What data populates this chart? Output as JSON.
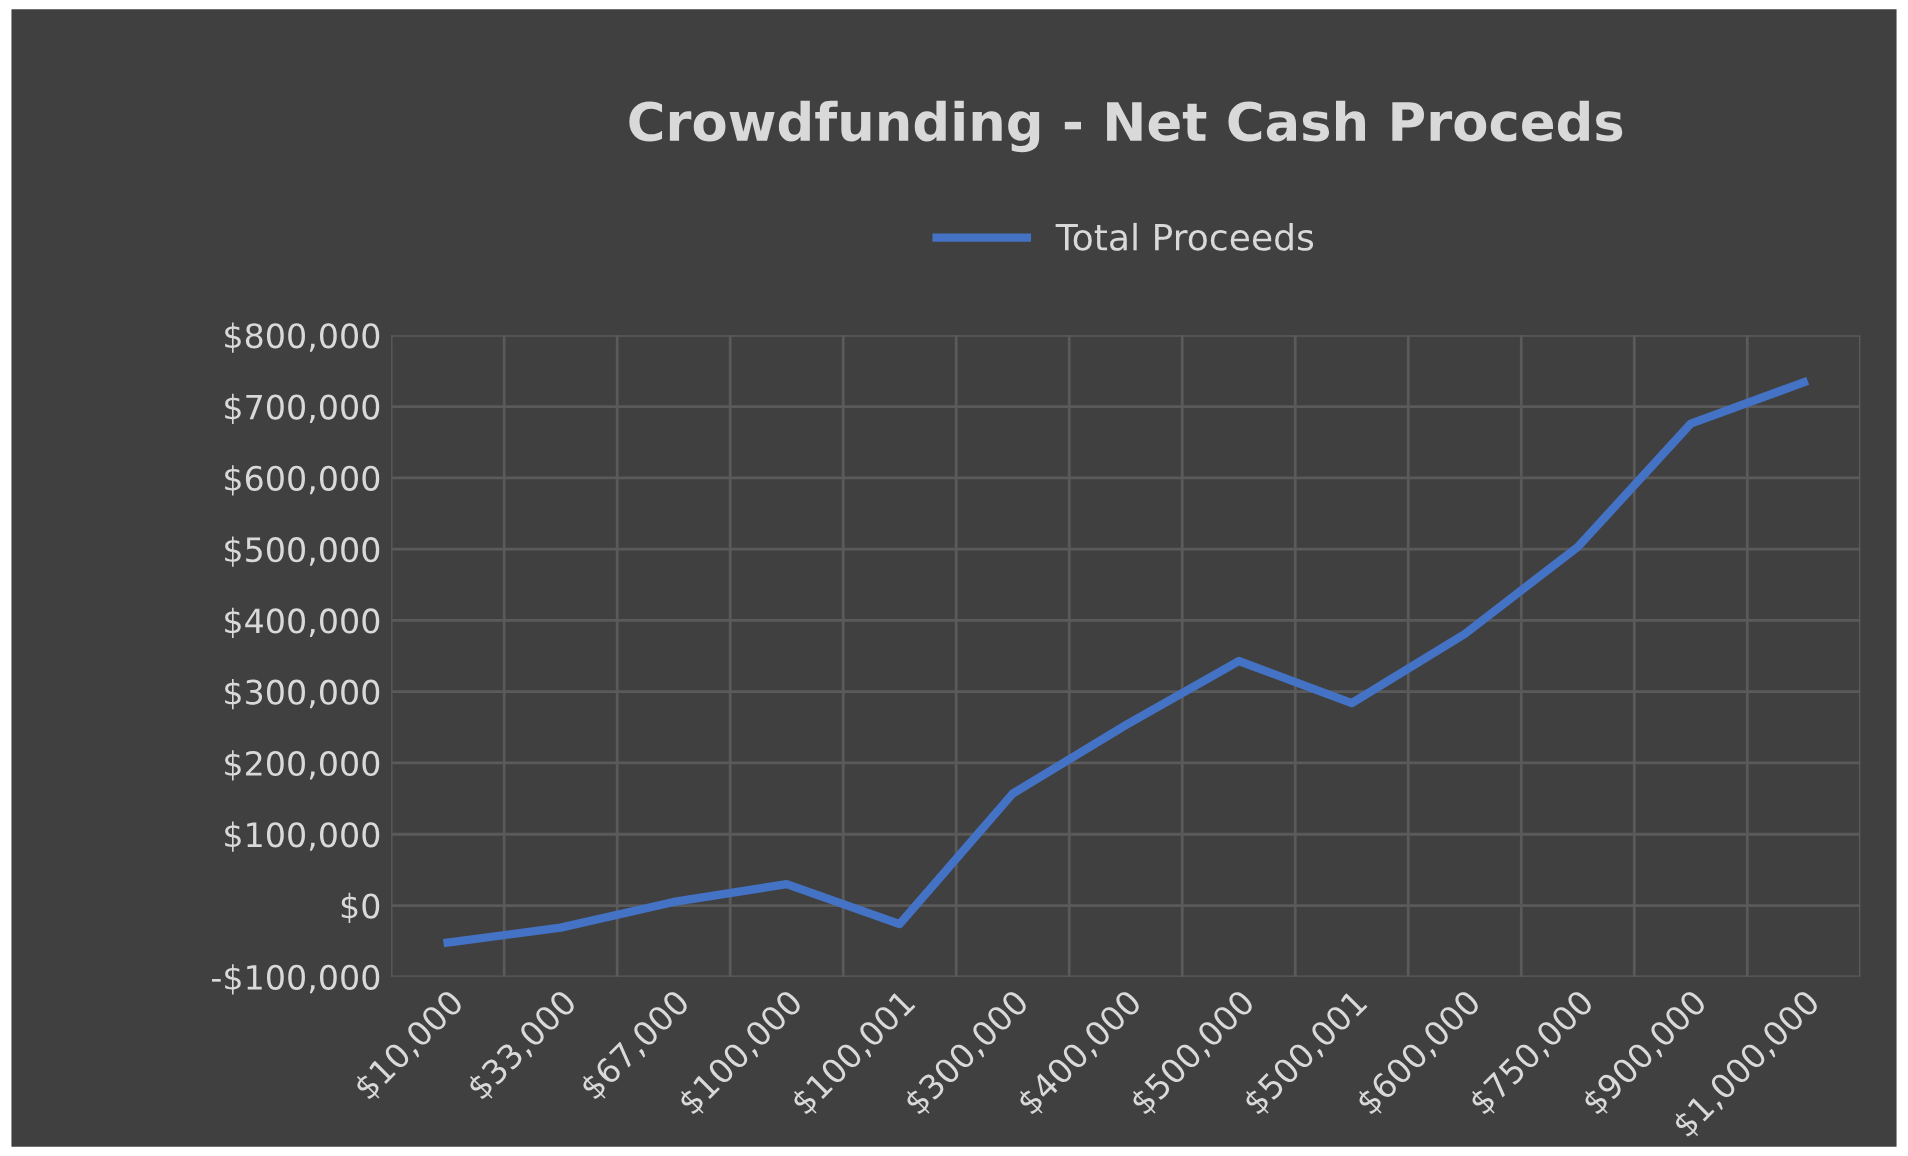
{
  "chart_data": {
    "type": "line",
    "title": "Crowdfunding - Net Cash Proceds",
    "categories": [
      "$10,000",
      "$33,000",
      "$67,000",
      "$100,000",
      "$100,001",
      "$300,000",
      "$400,000",
      "$500,000",
      "$500,001",
      "$600,000",
      "$750,000",
      "$900,000",
      "$1,000,000"
    ],
    "series": [
      {
        "name": "Total Proceeds",
        "color": "#4472c4",
        "values": [
          -52000,
          -31000,
          5000,
          30000,
          -26000,
          157000,
          253000,
          343000,
          284000,
          381000,
          503000,
          676000,
          734000
        ]
      }
    ],
    "ylim": [
      -100000,
      800000
    ],
    "yticks": [
      {
        "value": -100000,
        "label": "-$100,000"
      },
      {
        "value": 0,
        "label": "$0"
      },
      {
        "value": 100000,
        "label": "$100,000"
      },
      {
        "value": 200000,
        "label": "$200,000"
      },
      {
        "value": 300000,
        "label": "$300,000"
      },
      {
        "value": 400000,
        "label": "$400,000"
      },
      {
        "value": 500000,
        "label": "$500,000"
      },
      {
        "value": 600000,
        "label": "$600,000"
      },
      {
        "value": 700000,
        "label": "$700,000"
      },
      {
        "value": 800000,
        "label": "$800,000"
      }
    ],
    "grid": true,
    "legend": "top",
    "marker": "none",
    "line_style": "solid"
  }
}
